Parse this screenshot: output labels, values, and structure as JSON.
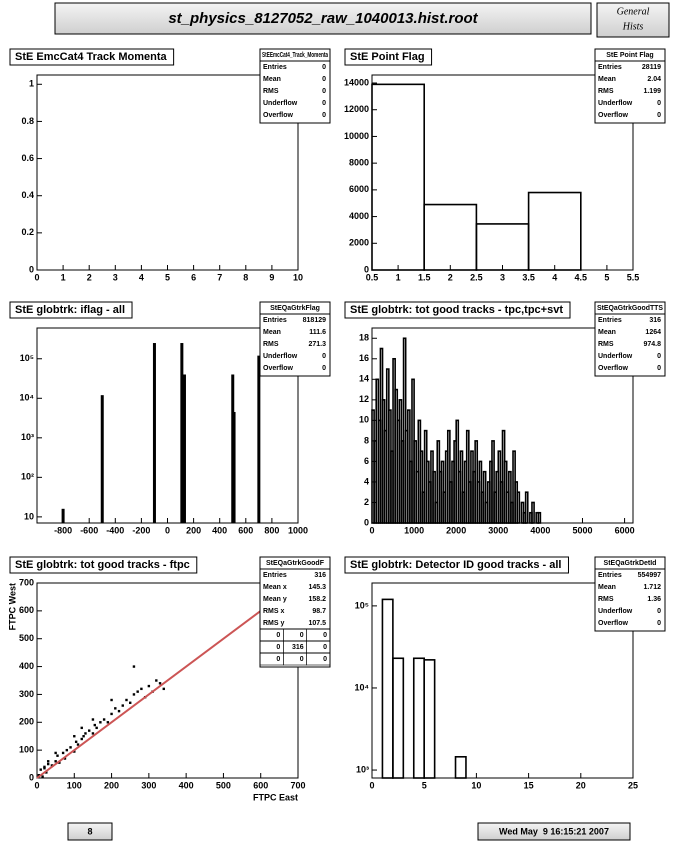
{
  "header": {
    "title": "st_physics_8127052_raw_1040013.hist.root",
    "side": [
      "General",
      "Hists"
    ]
  },
  "footer": {
    "page": 8,
    "date": "Wed May  9 16:15:21 2007"
  },
  "chart_data": [
    {
      "type": "histogram",
      "title": "StE EmcCat4 Track Momenta",
      "color": "#000000",
      "stats": {
        "name": "StEEmcCat4_Track_Momenta",
        "rows": [
          [
            "Entries",
            0
          ],
          [
            "Mean",
            0
          ],
          [
            "RMS",
            0
          ],
          [
            "Underflow",
            0
          ],
          [
            "Overflow",
            0
          ]
        ]
      },
      "xlim": [
        0,
        10
      ],
      "xticks": [
        0,
        1,
        2,
        3,
        4,
        5,
        6,
        7,
        8,
        9,
        10
      ],
      "ylim": [
        0,
        1.05
      ],
      "yticks": [
        0,
        0.2,
        0.4,
        0.6,
        0.8,
        1
      ]
    },
    {
      "type": "histogram",
      "title": "StE Point Flag",
      "color": "#000000",
      "stats": {
        "name": "StE Point Flag",
        "rows": [
          [
            "Entries",
            28119
          ],
          [
            "Mean",
            2.04
          ],
          [
            "RMS",
            1.199
          ],
          [
            "Underflow",
            0
          ],
          [
            "Overflow",
            0
          ]
        ]
      },
      "bins": [
        0.5,
        1.5,
        2.5,
        3.5,
        4.5
      ],
      "values": [
        13900,
        4900,
        3450,
        5800
      ],
      "xlim": [
        0.5,
        5.5
      ],
      "xticks": [
        0.5,
        1,
        1.5,
        2,
        2.5,
        3,
        3.5,
        4,
        4.5,
        5,
        5.5
      ],
      "ylim": [
        0,
        14600
      ],
      "yticks": [
        0,
        2000,
        4000,
        6000,
        8000,
        10000,
        12000,
        14000
      ]
    },
    {
      "type": "bar",
      "title": "StE globtrk: iflag - all",
      "color": "#000000",
      "log_y": true,
      "stats": {
        "name": "StEQaGtrkFlag",
        "rows": [
          [
            "Entries",
            818129
          ],
          [
            "Mean",
            111.6
          ],
          [
            "RMS",
            271.3
          ],
          [
            "Underflow",
            0
          ],
          [
            "Overflow",
            0
          ]
        ]
      },
      "x": [
        -800,
        -500,
        -100,
        110,
        130,
        500,
        510,
        700
      ],
      "values": [
        16,
        12000,
        250000,
        250000,
        40000,
        40000,
        4500,
        120000
      ],
      "xlim": [
        -1000,
        1000
      ],
      "xticks": [
        -800,
        -600,
        -400,
        -200,
        0,
        200,
        400,
        600,
        800,
        1000
      ],
      "ylim": [
        7,
        600000
      ],
      "yticks": [
        10,
        {
          "value": 100,
          "label": "10²"
        },
        {
          "value": 1000,
          "label": "10³"
        },
        {
          "value": 10000,
          "label": "10⁴"
        },
        {
          "value": 100000,
          "label": "10⁵"
        }
      ]
    },
    {
      "type": "histogram",
      "title": "StE globtrk: tot good tracks - tpc,tpc+svt",
      "color": "#000000",
      "stats": {
        "name": "StEQaGtrkGoodTTS",
        "rows": [
          [
            "Entries",
            316
          ],
          [
            "Mean",
            1264
          ],
          [
            "RMS",
            974.8
          ],
          [
            "Underflow",
            0
          ],
          [
            "Overflow",
            0
          ]
        ]
      },
      "bins": [
        0,
        50,
        100,
        150,
        200,
        250,
        300,
        350,
        400,
        450,
        500,
        550,
        600,
        650,
        700,
        750,
        800,
        850,
        900,
        950,
        1000,
        1050,
        1100,
        1150,
        1200,
        1250,
        1300,
        1350,
        1400,
        1450,
        1500,
        1550,
        1600,
        1650,
        1700,
        1750,
        1800,
        1850,
        1900,
        1950,
        2000,
        2050,
        2100,
        2150,
        2200,
        2250,
        2300,
        2350,
        2400,
        2450,
        2500,
        2550,
        2600,
        2650,
        2700,
        2750,
        2800,
        2850,
        2900,
        2950,
        3000,
        3050,
        3100,
        3150,
        3200,
        3250,
        3300,
        3350,
        3400,
        3450,
        3500,
        3550,
        3600,
        3650,
        3700,
        3750,
        3800,
        3850,
        3900,
        3950,
        4000
      ],
      "values": [
        11,
        8,
        14,
        10,
        17,
        12,
        9,
        15,
        11,
        7,
        16,
        13,
        10,
        12,
        8,
        18,
        9,
        11,
        6,
        14,
        8,
        5,
        10,
        7,
        3,
        9,
        6,
        4,
        7,
        5,
        2,
        8,
        5,
        6,
        3,
        7,
        9,
        4,
        6,
        8,
        10,
        5,
        7,
        3,
        6,
        9,
        4,
        7,
        5,
        8,
        4,
        6,
        3,
        5,
        2,
        4,
        6,
        8,
        3,
        5,
        7,
        4,
        9,
        6,
        3,
        5,
        2,
        7,
        4,
        3,
        null,
        2,
        1,
        3,
        null,
        1,
        2,
        null,
        1,
        1
      ],
      "xlim": [
        0,
        6200
      ],
      "xticks": [
        0,
        1000,
        2000,
        3000,
        4000,
        5000,
        6000
      ],
      "ylim": [
        0,
        19
      ],
      "yticks": [
        0,
        2,
        4,
        6,
        8,
        10,
        12,
        14,
        16,
        18
      ]
    },
    {
      "type": "scatter",
      "title": "StE globtrk: tot good tracks - ftpc",
      "color": "#000000",
      "xlabel": "FTPC East",
      "ylabel": "FTPC West",
      "stats": {
        "name": "StEQaGtrkGoodF",
        "rows": [
          [
            "Entries",
            316
          ],
          [
            "Mean x",
            145.3
          ],
          [
            "Mean y",
            158.2
          ],
          [
            "RMS x",
            98.7
          ],
          [
            "RMS y",
            107.5
          ]
        ],
        "grid": [
          [
            0,
            0,
            0
          ],
          [
            0,
            316,
            0
          ],
          [
            0,
            0,
            0
          ]
        ]
      },
      "x": [
        5,
        10,
        15,
        20,
        25,
        30,
        40,
        50,
        55,
        60,
        70,
        75,
        80,
        90,
        100,
        105,
        110,
        120,
        125,
        130,
        140,
        150,
        155,
        160,
        170,
        180,
        190,
        200,
        210,
        220,
        230,
        240,
        250,
        260,
        270,
        280,
        290,
        300,
        310,
        320,
        330,
        260,
        200,
        150,
        100,
        50,
        30,
        20,
        120,
        340
      ],
      "y": [
        10,
        30,
        5,
        40,
        20,
        50,
        45,
        60,
        80,
        55,
        90,
        70,
        100,
        110,
        95,
        130,
        120,
        140,
        150,
        160,
        170,
        160,
        190,
        180,
        200,
        210,
        200,
        230,
        250,
        240,
        260,
        280,
        270,
        300,
        310,
        320,
        290,
        330,
        310,
        350,
        340,
        400,
        280,
        210,
        150,
        90,
        60,
        35,
        180,
        320
      ],
      "fit": {
        "x": [
          0,
          700
        ],
        "y": [
          0,
          700
        ],
        "color": "#cc5555"
      },
      "xlim": [
        0,
        700
      ],
      "xticks": [
        0,
        100,
        200,
        300,
        400,
        500,
        600,
        700
      ],
      "ylim": [
        0,
        700
      ],
      "yticks": [
        0,
        100,
        200,
        300,
        400,
        500,
        600,
        700
      ]
    },
    {
      "type": "histogram",
      "title": "StE globtrk: Detector ID good tracks - all",
      "color": "#000000",
      "log_y": true,
      "stats": {
        "name": "StEQaGtrkDetId",
        "rows": [
          [
            "Entries",
            554997
          ],
          [
            "Mean",
            1.712
          ],
          [
            "RMS",
            1.36
          ],
          [
            "Underflow",
            0
          ],
          [
            "Overflow",
            0
          ]
        ]
      },
      "bins": [
        1,
        2,
        3,
        4,
        5,
        6,
        7,
        8,
        9
      ],
      "values": [
        120000,
        23000,
        null,
        23000,
        22000,
        null,
        null,
        1450
      ],
      "xlim": [
        0,
        25
      ],
      "xticks": [
        0,
        5,
        10,
        15,
        20,
        25
      ],
      "ylim": [
        800,
        190000
      ],
      "yticks": [
        {
          "value": 1000,
          "label": "10³"
        },
        {
          "value": 10000,
          "label": "10⁴"
        },
        {
          "value": 100000,
          "label": "10⁵"
        }
      ]
    }
  ]
}
